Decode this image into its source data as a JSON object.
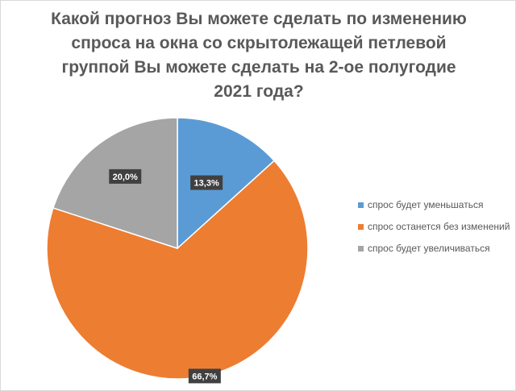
{
  "chart_data": {
    "type": "pie",
    "title": "Какой прогноз Вы можете сделать по изменению спроса на окна со скрытолежащей петлевой группой Вы можете сделать на 2-ое полугодие 2021 года?",
    "categories": [
      "спрос будет уменьшаться",
      "спрос останется без изменений",
      "спрос будет увеличиваться"
    ],
    "values": [
      13.3,
      66.7,
      20.0
    ],
    "data_labels": [
      "13,3%",
      "66,7%",
      "20,0%"
    ],
    "colors": [
      "#5b9bd5",
      "#ed7d31",
      "#a5a5a5"
    ],
    "start_angle": "12 o'clock, clockwise",
    "legend_position": "right"
  }
}
